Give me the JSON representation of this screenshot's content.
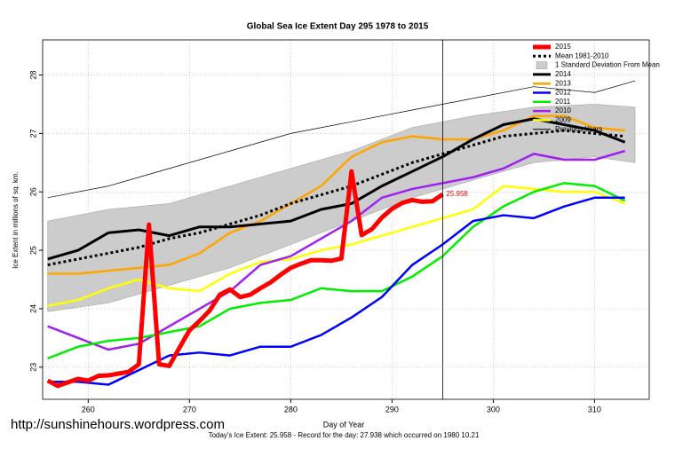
{
  "chart_data": {
    "type": "line",
    "title": "Global Sea Ice Extent Day 295 1978 to 2015",
    "xlabel": "Day of Year",
    "ylabel": "Ice Extent in millions of sq. km.",
    "footer": "Today's Ice Extent: 25.958  -  Record for the day: 27.938 which occurred on 1980 10.21",
    "watermark": "http://sunshinehours.wordpress.com",
    "xlim": [
      255.5,
      315.4
    ],
    "ylim": [
      22.45,
      28.6
    ],
    "xticks": [
      260,
      270,
      280,
      290,
      300,
      310
    ],
    "yticks": [
      23,
      24,
      25,
      26,
      27,
      28
    ],
    "grid": true,
    "legend": "top-right",
    "vline": 295,
    "band": {
      "name": "1 Standard Deviation From Mean",
      "color": "#cccccc",
      "x": [
        256,
        262,
        268,
        274,
        280,
        286,
        292,
        298,
        304,
        310,
        314
      ],
      "upper": [
        25.5,
        25.7,
        25.8,
        26.1,
        26.4,
        26.7,
        27.1,
        27.3,
        27.45,
        27.5,
        27.45
      ],
      "lower": [
        23.95,
        24.1,
        24.4,
        24.7,
        25.1,
        25.5,
        25.9,
        26.2,
        26.5,
        26.6,
        26.5
      ]
    },
    "series": [
      {
        "name": "2015",
        "color": "#ff0000",
        "width": 5,
        "x": [
          256,
          257,
          258,
          259,
          260,
          261,
          262,
          263,
          264,
          265,
          266,
          267,
          268,
          269,
          270,
          271,
          272,
          273,
          274,
          275,
          276,
          277,
          278,
          279,
          280,
          281,
          282,
          283,
          284,
          285,
          286,
          287,
          288,
          289,
          290,
          291,
          292,
          293,
          294,
          295
        ],
        "values": [
          22.77,
          22.68,
          22.74,
          22.8,
          22.77,
          22.85,
          22.86,
          22.89,
          22.92,
          23.05,
          25.44,
          23.05,
          23.02,
          23.33,
          23.63,
          23.79,
          23.97,
          24.24,
          24.33,
          24.2,
          24.24,
          24.35,
          24.45,
          24.58,
          24.7,
          24.77,
          24.83,
          24.83,
          24.82,
          24.86,
          26.35,
          25.26,
          25.36,
          25.56,
          25.71,
          25.81,
          25.86,
          25.83,
          25.84,
          25.958
        ]
      },
      {
        "name": "Mean 1981-2010",
        "color": "#000000",
        "width": 3,
        "dashed": true,
        "x": [
          256,
          259,
          262,
          265,
          268,
          271,
          274,
          277,
          280,
          283,
          286,
          289,
          292,
          295,
          298,
          301,
          304,
          307,
          310,
          313
        ],
        "values": [
          24.75,
          24.85,
          24.95,
          25.05,
          25.2,
          25.3,
          25.45,
          25.6,
          25.8,
          25.95,
          26.1,
          26.3,
          26.5,
          26.65,
          26.8,
          26.95,
          27.0,
          27.05,
          27.0,
          26.95
        ]
      },
      {
        "name": "2014",
        "color": "#000000",
        "width": 3,
        "x": [
          256,
          259,
          262,
          265,
          268,
          271,
          274,
          277,
          280,
          283,
          286,
          289,
          292,
          295,
          298,
          301,
          304,
          307,
          310,
          313
        ],
        "values": [
          24.85,
          25.0,
          25.3,
          25.35,
          25.25,
          25.4,
          25.4,
          25.45,
          25.5,
          25.7,
          25.8,
          26.1,
          26.35,
          26.6,
          26.9,
          27.15,
          27.25,
          27.15,
          27.05,
          26.85
        ]
      },
      {
        "name": "2013",
        "color": "#ffa500",
        "width": 2.5,
        "x": [
          256,
          259,
          262,
          265,
          268,
          271,
          274,
          277,
          280,
          283,
          286,
          289,
          292,
          295,
          298,
          301,
          304,
          307,
          310,
          313
        ],
        "values": [
          24.6,
          24.6,
          24.65,
          24.7,
          24.75,
          24.95,
          25.3,
          25.5,
          25.8,
          26.1,
          26.6,
          26.85,
          26.95,
          26.9,
          26.9,
          27.05,
          27.3,
          27.3,
          27.1,
          27.05
        ]
      },
      {
        "name": "2012",
        "color": "#0000ff",
        "width": 2.5,
        "x": [
          256,
          259,
          262,
          265,
          268,
          271,
          274,
          277,
          280,
          283,
          286,
          289,
          292,
          295,
          298,
          301,
          304,
          307,
          310,
          313
        ],
        "values": [
          22.75,
          22.75,
          22.7,
          22.95,
          23.2,
          23.25,
          23.2,
          23.35,
          23.35,
          23.55,
          23.85,
          24.2,
          24.75,
          25.1,
          25.5,
          25.6,
          25.55,
          25.75,
          25.9,
          25.9
        ]
      },
      {
        "name": "2011",
        "color": "#00ee00",
        "width": 2.5,
        "x": [
          256,
          259,
          262,
          265,
          268,
          271,
          274,
          277,
          280,
          283,
          286,
          289,
          292,
          295,
          298,
          301,
          304,
          307,
          310,
          313
        ],
        "values": [
          23.15,
          23.35,
          23.45,
          23.5,
          23.6,
          23.7,
          24.0,
          24.1,
          24.15,
          24.35,
          24.3,
          24.3,
          24.55,
          24.9,
          25.4,
          25.75,
          26.0,
          26.15,
          26.1,
          25.85
        ]
      },
      {
        "name": "2010",
        "color": "#a020f0",
        "width": 2.5,
        "x": [
          256,
          259,
          262,
          265,
          268,
          271,
          274,
          277,
          280,
          283,
          286,
          289,
          292,
          295,
          298,
          301,
          304,
          307,
          310,
          313
        ],
        "values": [
          23.7,
          23.5,
          23.3,
          23.4,
          23.7,
          24.0,
          24.3,
          24.75,
          24.9,
          25.2,
          25.5,
          25.9,
          26.05,
          26.15,
          26.25,
          26.4,
          26.65,
          26.55,
          26.55,
          26.7
        ]
      },
      {
        "name": "2009",
        "color": "#ffff00",
        "width": 2.5,
        "x": [
          256,
          259,
          262,
          265,
          268,
          271,
          274,
          277,
          280,
          283,
          286,
          289,
          292,
          295,
          298,
          301,
          304,
          307,
          310,
          313
        ],
        "values": [
          24.05,
          24.15,
          24.35,
          24.5,
          24.35,
          24.3,
          24.6,
          24.8,
          24.85,
          25.0,
          25.1,
          25.25,
          25.4,
          25.55,
          25.7,
          26.1,
          26.05,
          26.0,
          26.0,
          25.8
        ]
      },
      {
        "name": "Previous Years",
        "color": "#000000",
        "width": 0.7,
        "x": [
          256,
          262,
          268,
          274,
          280,
          286,
          292,
          298,
          304,
          310,
          314
        ],
        "values": [
          25.9,
          26.1,
          26.4,
          26.7,
          27.0,
          27.2,
          27.4,
          27.6,
          27.8,
          27.7,
          27.9
        ]
      }
    ]
  }
}
